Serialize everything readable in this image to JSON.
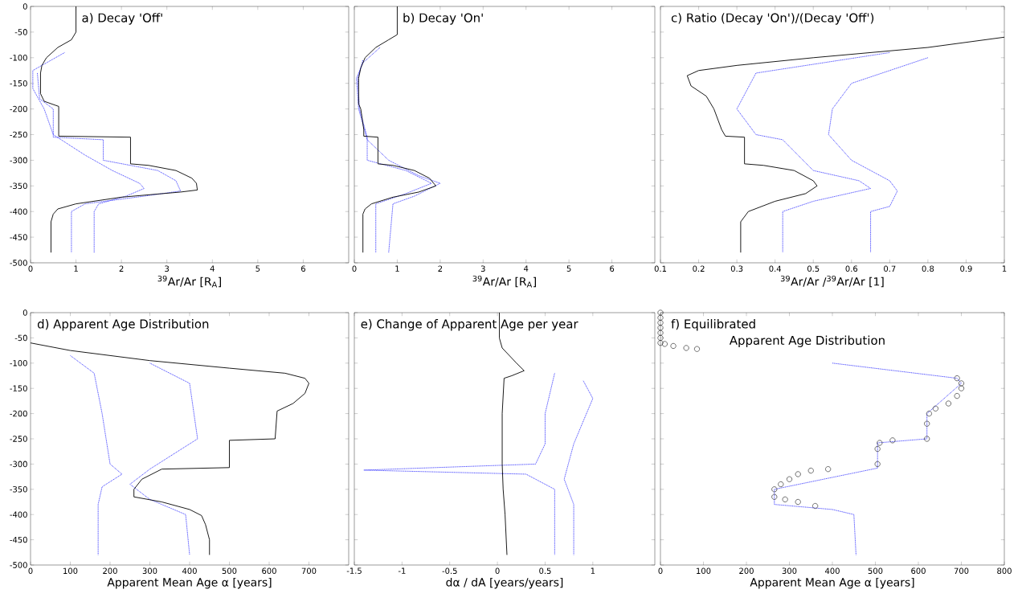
{
  "chart_data": [
    {
      "type": "line",
      "title": "a) Decay 'Off'",
      "xlabel": "$^{39}$Ar/Ar [R$_{A}$]",
      "xlim": [
        0,
        7
      ],
      "ylim": [
        -500,
        0
      ],
      "xticks": [
        0,
        1,
        2,
        3,
        4,
        5,
        6
      ],
      "yticks": [
        0,
        -50,
        -100,
        -150,
        -200,
        -250,
        -300,
        -350,
        -400,
        -450,
        -500
      ],
      "series": [
        {
          "color": "#3a3aff",
          "line_style": "dotted",
          "x": [
            0.75,
            0.35,
            0.05,
            0.05,
            0.3,
            0.5,
            1.2,
            1.8,
            2.4,
            2.5,
            2.1,
            1.5,
            1.4,
            1.4
          ],
          "values": [
            -90,
            -110,
            -125,
            -160,
            -200,
            -250,
            -290,
            -320,
            -345,
            -355,
            -370,
            -385,
            -400,
            -480
          ]
        },
        {
          "color": "#3a3aff",
          "line_style": "dotted",
          "x": [
            0.15,
            0.2,
            0.5,
            0.5,
            1.6,
            1.6,
            2.8,
            3.2,
            3.3,
            2.5,
            1.2,
            0.9,
            0.9
          ],
          "values": [
            -130,
            -180,
            -200,
            -255,
            -260,
            -300,
            -320,
            -340,
            -360,
            -370,
            -385,
            -400,
            -480
          ]
        },
        {
          "color": "#000000",
          "line_style": "solid",
          "x": [
            1,
            1,
            0.9,
            0.6,
            0.35,
            0.25,
            0.22,
            0.22,
            0.3,
            0.62,
            0.62,
            2.2,
            2.2,
            2.6,
            3.2,
            3.55,
            3.65,
            3.67,
            3.3,
            2.0,
            1.0,
            0.6,
            0.5,
            0.45,
            0.45
          ],
          "values": [
            0,
            -50,
            -65,
            -80,
            -100,
            -115,
            -130,
            -170,
            -185,
            -195,
            -253,
            -255,
            -307,
            -310,
            -320,
            -335,
            -345,
            -358,
            -362,
            -372,
            -385,
            -395,
            -405,
            -420,
            -480
          ]
        }
      ]
    },
    {
      "type": "line",
      "title": "b) Decay 'On'",
      "xlabel": "$^{39}$Ar/Ar [R$_{A}$]",
      "xlim": [
        0,
        7
      ],
      "ylim": [
        -500,
        0
      ],
      "xticks": [
        0,
        1,
        2,
        3,
        4,
        5,
        6
      ],
      "yticks": [
        0,
        -50,
        -100,
        -150,
        -200,
        -250,
        -300,
        -350,
        -400,
        -450,
        -500
      ],
      "tick_labels": "x",
      "series": [
        {
          "color": "#3a3aff",
          "line_style": "dotted",
          "x": [
            0.6,
            0.2,
            0.05,
            0.1,
            0.3,
            0.8,
            1.5,
            2.0,
            1.4,
            0.9,
            0.8
          ],
          "values": [
            -80,
            -110,
            -140,
            -200,
            -260,
            -300,
            -330,
            -345,
            -370,
            -385,
            -480
          ]
        },
        {
          "color": "#3a3aff",
          "line_style": "dotted",
          "x": [
            0.2,
            0.08,
            0.12,
            0.3,
            0.3,
            1.2,
            1.8,
            1.2,
            0.5,
            0.5
          ],
          "values": [
            -105,
            -140,
            -200,
            -255,
            -300,
            -320,
            -345,
            -365,
            -385,
            -480
          ]
        },
        {
          "color": "#000000",
          "line_style": "solid",
          "x": [
            1,
            1,
            0.8,
            0.5,
            0.25,
            0.15,
            0.1,
            0.1,
            0.15,
            0.22,
            0.22,
            0.55,
            0.55,
            0.9,
            1.4,
            1.75,
            1.9,
            1.5,
            0.9,
            0.4,
            0.25,
            0.2,
            0.2
          ],
          "values": [
            0,
            -55,
            -65,
            -80,
            -100,
            -120,
            -140,
            -190,
            -200,
            -240,
            -253,
            -255,
            -307,
            -310,
            -320,
            -335,
            -350,
            -362,
            -372,
            -385,
            -395,
            -405,
            -480
          ]
        }
      ]
    },
    {
      "type": "line",
      "title": "c) Ratio (Decay 'On')/(Decay 'Off')",
      "xlabel": "$^{39}$Ar/Ar /$^{39}$Ar/Ar [1]",
      "xlim": [
        0.1,
        1
      ],
      "ylim": [
        -500,
        0
      ],
      "xticks": [
        0.1,
        0.2,
        0.3,
        0.4,
        0.5,
        0.6,
        0.7,
        0.8,
        0.9,
        1
      ],
      "yticks": [
        0,
        -50,
        -100,
        -150,
        -200,
        -250,
        -300,
        -350,
        -400,
        -450,
        -500
      ],
      "tick_labels": "x",
      "series": [
        {
          "color": "#3a3aff",
          "line_style": "dotted",
          "x": [
            0.8,
            0.6,
            0.55,
            0.54,
            0.6,
            0.7,
            0.72,
            0.7,
            0.65,
            0.65
          ],
          "values": [
            -100,
            -150,
            -200,
            -250,
            -300,
            -340,
            -360,
            -390,
            -400,
            -480
          ]
        },
        {
          "color": "#3a3aff",
          "line_style": "dotted",
          "x": [
            0.7,
            0.35,
            0.3,
            0.35,
            0.42,
            0.5,
            0.62,
            0.65,
            0.5,
            0.42,
            0.42
          ],
          "values": [
            -90,
            -130,
            -200,
            -250,
            -260,
            -320,
            -340,
            -355,
            -380,
            -400,
            -480
          ]
        },
        {
          "color": "#000000",
          "line_style": "solid",
          "x": [
            1,
            0.8,
            0.5,
            0.3,
            0.2,
            0.17,
            0.18,
            0.22,
            0.24,
            0.26,
            0.27,
            0.32,
            0.32,
            0.37,
            0.45,
            0.5,
            0.51,
            0.48,
            0.4,
            0.33,
            0.31,
            0.31
          ],
          "values": [
            -60,
            -80,
            -100,
            -115,
            -125,
            -135,
            -155,
            -175,
            -200,
            -240,
            -253,
            -255,
            -307,
            -310,
            -320,
            -340,
            -350,
            -365,
            -380,
            -400,
            -420,
            -480
          ]
        }
      ]
    },
    {
      "type": "line",
      "title": "d) Apparent Age Distribution",
      "xlabel": "Apparent Mean Age α [years]",
      "xlim": [
        0,
        800
      ],
      "ylim": [
        -500,
        0
      ],
      "xticks": [
        0,
        100,
        200,
        300,
        400,
        500,
        600,
        700
      ],
      "yticks": [
        0,
        -50,
        -100,
        -150,
        -200,
        -250,
        -300,
        -350,
        -400,
        -450,
        -500
      ],
      "series": [
        {
          "color": "#3a3aff",
          "line_style": "dotted",
          "x": [
            100,
            160,
            180,
            200,
            230,
            180,
            170,
            170
          ],
          "values": [
            -85,
            -120,
            -200,
            -300,
            -320,
            -345,
            -380,
            -480
          ]
        },
        {
          "color": "#3a3aff",
          "line_style": "dotted",
          "x": [
            300,
            400,
            420,
            300,
            250,
            300,
            390,
            400
          ],
          "values": [
            -100,
            -140,
            -250,
            -310,
            -340,
            -370,
            -400,
            -480
          ]
        },
        {
          "color": "#000000",
          "line_style": "solid",
          "x": [
            0,
            100,
            300,
            500,
            640,
            690,
            700,
            690,
            660,
            620,
            615,
            500,
            500,
            330,
            280,
            260,
            260,
            330,
            400,
            430,
            440,
            450,
            450
          ],
          "values": [
            -60,
            -75,
            -95,
            -110,
            -120,
            -130,
            -140,
            -160,
            -180,
            -195,
            -250,
            -253,
            -307,
            -310,
            -330,
            -350,
            -365,
            -375,
            -390,
            -402,
            -420,
            -450,
            -480
          ]
        }
      ]
    },
    {
      "type": "line",
      "title": "e) Change of Apparent Age per year",
      "xlabel": "dα / dA [years/years]",
      "xlim": [
        -1.5,
        1.65
      ],
      "ylim": [
        -500,
        0
      ],
      "xticks": [
        -1.5,
        -1,
        -0.5,
        0,
        0.5,
        1
      ],
      "yticks": [
        0,
        -50,
        -100,
        -150,
        -200,
        -250,
        -300,
        -350,
        -400,
        -450,
        -500
      ],
      "tick_labels": "x",
      "series": [
        {
          "color": "#3a3aff",
          "line_style": "dotted",
          "x": [
            0.6,
            0.5,
            0.5,
            0.4,
            -1.4,
            0.3,
            0.6,
            0.6
          ],
          "values": [
            -120,
            -200,
            -260,
            -300,
            -312,
            -320,
            -350,
            -480
          ]
        },
        {
          "color": "#3a3aff",
          "line_style": "dotted",
          "x": [
            0.9,
            1.0,
            0.8,
            0.7,
            0.8,
            0.8
          ],
          "values": [
            -135,
            -170,
            -260,
            -330,
            -380,
            -480
          ]
        },
        {
          "color": "#000000",
          "line_style": "solid",
          "x": [
            0.02,
            0.02,
            0.05,
            0.2,
            0.28,
            0.15,
            0.07,
            0.05,
            0.05,
            0.06,
            0.08,
            0.1
          ],
          "values": [
            0,
            -50,
            -70,
            -100,
            -115,
            -125,
            -130,
            -200,
            -300,
            -350,
            -400,
            -480
          ]
        }
      ]
    },
    {
      "type": "line",
      "title": "f) Equilibrated",
      "subtitle": "Apparent Age Distribution",
      "xlabel": "Apparent Mean Age α [years]",
      "xlim": [
        0,
        800
      ],
      "ylim": [
        -500,
        0
      ],
      "xticks": [
        0,
        100,
        200,
        300,
        400,
        500,
        600,
        700,
        800
      ],
      "yticks": [
        0,
        -50,
        -100,
        -150,
        -200,
        -250,
        -300,
        -350,
        -400,
        -450,
        -500
      ],
      "tick_labels": "x",
      "series": [
        {
          "color": "#3a3aff",
          "line_style": "dotted",
          "x": [
            400,
            690,
            700,
            620,
            620,
            505,
            505,
            265,
            265,
            400,
            450,
            455
          ],
          "values": [
            -100,
            -130,
            -140,
            -200,
            -250,
            -258,
            -308,
            -350,
            -380,
            -390,
            -400,
            -480
          ]
        },
        {
          "type": "scatter",
          "marker": "circle",
          "color": "#333333",
          "x": [
            0,
            0,
            0,
            0,
            0,
            0,
            0,
            10,
            30,
            60,
            85,
            690,
            700,
            700,
            690,
            670,
            640,
            625,
            620,
            620,
            540,
            510,
            505,
            505,
            390,
            350,
            320,
            300,
            280,
            265,
            265,
            290,
            320,
            360
          ],
          "values": [
            0,
            -10,
            -20,
            -30,
            -40,
            -50,
            -60,
            -62,
            -66,
            -70,
            -72,
            -130,
            -140,
            -150,
            -165,
            -180,
            -190,
            -200,
            -220,
            -250,
            -253,
            -258,
            -270,
            -300,
            -310,
            -313,
            -320,
            -330,
            -340,
            -350,
            -365,
            -370,
            -375,
            -383
          ]
        }
      ]
    }
  ]
}
